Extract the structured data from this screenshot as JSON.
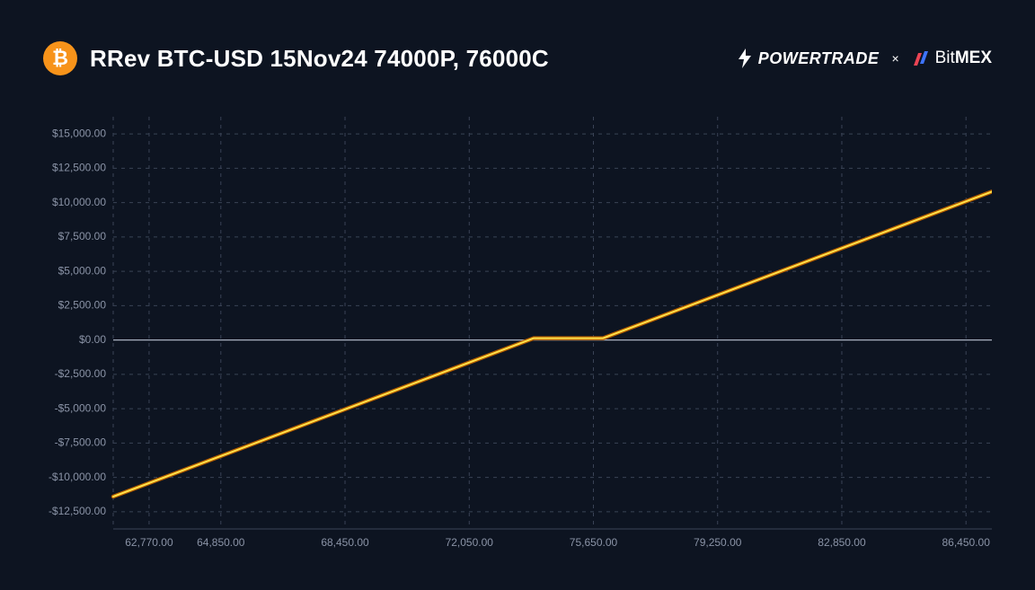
{
  "header": {
    "title": "RRev BTC-USD 15Nov24 74000P, 76000C",
    "icon_bg": "#f7931a",
    "icon_glyph": "₿",
    "brand1": "POWERTRADE",
    "brand_sep": "×",
    "brand2_a": "Bit",
    "brand2_b": "MEX"
  },
  "chart": {
    "type": "line",
    "background_color": "#0d1421",
    "grid_color": "#3a4356",
    "axis_label_color": "#8a93a6",
    "zero_line_color": "#a8b0c0",
    "line_color_outer": "#b35c00",
    "line_color_inner": "#ffe24a",
    "axis_font_size": 12,
    "x_min": 61730,
    "x_max": 87200,
    "y_min": -13750,
    "y_max": 16250,
    "y_ticks": [
      {
        "v": 15000,
        "label": "$15,000.00"
      },
      {
        "v": 12500,
        "label": "$12,500.00"
      },
      {
        "v": 10000,
        "label": "$10,000.00"
      },
      {
        "v": 7500,
        "label": "$7,500.00"
      },
      {
        "v": 5000,
        "label": "$5,000.00"
      },
      {
        "v": 2500,
        "label": "$2,500.00"
      },
      {
        "v": 0,
        "label": "$0.00"
      },
      {
        "v": -2500,
        "label": "-$2,500.00"
      },
      {
        "v": -5000,
        "label": "-$5,000.00"
      },
      {
        "v": -7500,
        "label": "-$7,500.00"
      },
      {
        "v": -10000,
        "label": "-$10,000.00"
      },
      {
        "v": -12500,
        "label": "-$12,500.00"
      }
    ],
    "x_ticks": [
      {
        "v": 62770,
        "label": "62,770.00"
      },
      {
        "v": 64850,
        "label": "64,850.00"
      },
      {
        "v": 68450,
        "label": "68,450.00"
      },
      {
        "v": 72050,
        "label": "72,050.00"
      },
      {
        "v": 75650,
        "label": "75,650.00"
      },
      {
        "v": 79250,
        "label": "79,250.00"
      },
      {
        "v": 82850,
        "label": "82,850.00"
      },
      {
        "v": 86450,
        "label": "86,450.00"
      }
    ],
    "points": [
      {
        "x": 61730,
        "y": -11400
      },
      {
        "x": 73920,
        "y": 130
      },
      {
        "x": 75930,
        "y": 130
      },
      {
        "x": 87200,
        "y": 10800
      }
    ]
  }
}
